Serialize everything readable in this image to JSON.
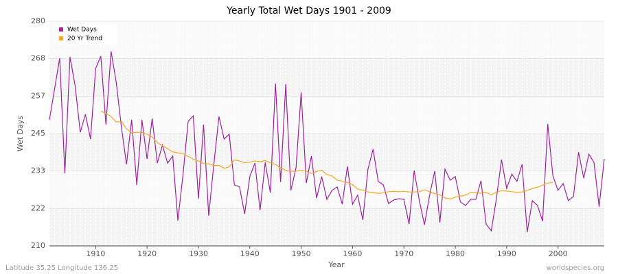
{
  "chart_data": {
    "type": "line",
    "title": "Yearly Total Wet Days 1901 - 2009",
    "xlabel": "Year",
    "ylabel": "Wet Days",
    "footer_left": "Latitude 35.25 Longitude 136.25",
    "footer_right": "worldspecies.org",
    "legend": "upper left",
    "grid": true,
    "xlim": [
      1901,
      2009
    ],
    "ylim": [
      210,
      280
    ],
    "xticks": [
      1910,
      1920,
      1930,
      1940,
      1950,
      1960,
      1970,
      1980,
      1990,
      2000
    ],
    "yticks": [
      210,
      {
        "value": 221.67,
        "label": "222"
      },
      {
        "value": 233.33,
        "label": "233"
      },
      245,
      {
        "value": 256.67,
        "label": "257"
      },
      {
        "value": 268.33,
        "label": "268"
      },
      280
    ],
    "x": [
      1901,
      1902,
      1903,
      1904,
      1905,
      1906,
      1907,
      1908,
      1909,
      1910,
      1911,
      1912,
      1913,
      1914,
      1915,
      1916,
      1917,
      1918,
      1919,
      1920,
      1921,
      1922,
      1923,
      1924,
      1925,
      1926,
      1927,
      1928,
      1929,
      1930,
      1931,
      1932,
      1933,
      1934,
      1935,
      1936,
      1937,
      1938,
      1939,
      1940,
      1941,
      1942,
      1943,
      1944,
      1945,
      1946,
      1947,
      1948,
      1949,
      1950,
      1951,
      1952,
      1953,
      1954,
      1955,
      1956,
      1957,
      1958,
      1959,
      1960,
      1961,
      1962,
      1963,
      1964,
      1965,
      1966,
      1967,
      1968,
      1969,
      1970,
      1971,
      1972,
      1973,
      1974,
      1975,
      1976,
      1977,
      1978,
      1979,
      1980,
      1981,
      1982,
      1983,
      1984,
      1985,
      1986,
      1987,
      1988,
      1989,
      1990,
      1991,
      1992,
      1993,
      1994,
      1995,
      1996,
      1997,
      1998,
      1999,
      2000,
      2001,
      2002,
      2003,
      2004,
      2005,
      2006,
      2007,
      2008,
      2009
    ],
    "series": [
      {
        "name": "Wet Days",
        "color": "#a020a0",
        "values": [
          249.3,
          258.9,
          268.5,
          232.6,
          268.9,
          259.9,
          245.4,
          251,
          243.3,
          265.3,
          269.1,
          247.8,
          270.6,
          261,
          247.1,
          235.4,
          249.3,
          229,
          249.3,
          237.1,
          249.7,
          235.8,
          241.4,
          235.8,
          238,
          217.9,
          232.2,
          248.8,
          250.5,
          224.7,
          247.8,
          219.4,
          235.4,
          250.3,
          243.3,
          244.8,
          229,
          228.4,
          220,
          231.6,
          235.8,
          221.1,
          236,
          226.6,
          260.6,
          229.9,
          260.4,
          227.3,
          234.3,
          257.8,
          229.6,
          238,
          224.9,
          231.6,
          224.5,
          227.3,
          228.4,
          223,
          234.8,
          223,
          225.8,
          218.1,
          233.9,
          240.1,
          230.1,
          229,
          223.2,
          224.3,
          224.7,
          224.5,
          216.8,
          233.5,
          224.1,
          216.6,
          225.8,
          233.3,
          217.3,
          233.9,
          230.5,
          231.6,
          223.7,
          222.6,
          224.5,
          224.5,
          230.3,
          216.8,
          214.7,
          224.7,
          236.9,
          227.9,
          232.4,
          230.1,
          235.4,
          214.3,
          224.1,
          222.6,
          217.7,
          248,
          231.8,
          227.3,
          229.4,
          224.1,
          225.4,
          239.2,
          231.1,
          238.6,
          236,
          222.2,
          237.1
        ]
      },
      {
        "name": "20 Yr Trend",
        "color": "#f5a623",
        "values": [
          null,
          null,
          null,
          null,
          null,
          null,
          null,
          null,
          null,
          null,
          252,
          251.3,
          250.3,
          248.6,
          248.8,
          246.5,
          245.2,
          245.4,
          245.4,
          244.8,
          243.9,
          242.2,
          241.2,
          240.3,
          239.3,
          239,
          238.7,
          237.9,
          237,
          236.4,
          235.7,
          235.6,
          235,
          235.1,
          234.2,
          234.6,
          236.8,
          236.5,
          235.9,
          236.1,
          236.5,
          236.2,
          236.6,
          235.9,
          235.4,
          234.3,
          233.6,
          233.2,
          233.3,
          233.5,
          233.3,
          232.6,
          233.2,
          233.6,
          232.2,
          231.8,
          230.5,
          230.2,
          229.8,
          229.1,
          227.7,
          227.4,
          226.8,
          226.6,
          226.4,
          226.5,
          226.9,
          227,
          226.9,
          227,
          226.8,
          226.8,
          226.9,
          227.5,
          226.9,
          226.3,
          225.9,
          225,
          224.6,
          225.2,
          225.5,
          225.9,
          226.6,
          226.6,
          226.4,
          226.7,
          225.9,
          226.8,
          227.2,
          227.1,
          226.9,
          226.7,
          226.8,
          227.3,
          227.9,
          228.3,
          228.9,
          229.6,
          229.8,
          null,
          null,
          null,
          null,
          null,
          null,
          null,
          null,
          null,
          null
        ]
      }
    ]
  }
}
